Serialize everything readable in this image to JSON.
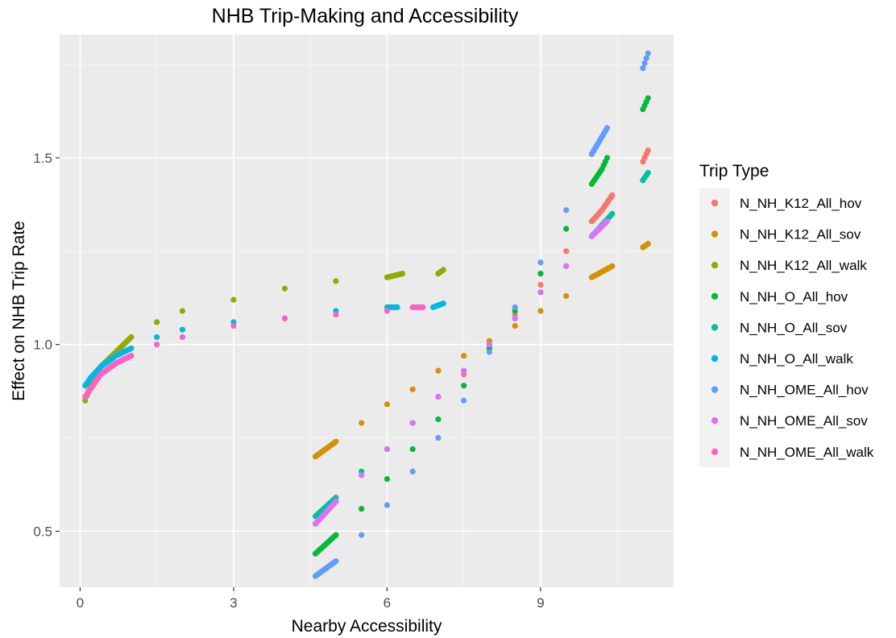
{
  "chart_data": {
    "type": "scatter",
    "title": "NHB Trip-Making and Accessibility",
    "xlabel": "Nearby Accessibility",
    "ylabel": "Effect on NHB Trip Rate",
    "xlim": [
      -0.4,
      11.6
    ],
    "ylim": [
      0.35,
      1.83
    ],
    "x_ticks": [
      0,
      3,
      6,
      9
    ],
    "x_tick_labels": [
      "0",
      "3",
      "6",
      "9"
    ],
    "y_ticks": [
      0.5,
      1.0,
      1.5
    ],
    "y_tick_labels": [
      "0.5",
      "1.0",
      "1.5"
    ],
    "grid": true,
    "legend": {
      "title": "Trip Type",
      "position": "right"
    },
    "series": [
      {
        "name": "N_NH_K12_All_hov",
        "color": "#F8766D",
        "points": [
          [
            4.6,
            0.52
          ],
          [
            5.0,
            0.58
          ],
          [
            5.5,
            0.65
          ],
          [
            6.0,
            0.72
          ],
          [
            6.5,
            0.79
          ],
          [
            7.0,
            0.86
          ],
          [
            7.5,
            0.92
          ],
          [
            8.0,
            1.0
          ],
          [
            8.5,
            1.08
          ],
          [
            9.0,
            1.16
          ],
          [
            9.5,
            1.25
          ],
          [
            10.0,
            1.33
          ],
          [
            10.2,
            1.36
          ],
          [
            10.4,
            1.4
          ],
          [
            11.0,
            1.49
          ],
          [
            11.1,
            1.52
          ]
        ]
      },
      {
        "name": "N_NH_K12_All_sov",
        "color": "#D39200",
        "points": [
          [
            4.6,
            0.7
          ],
          [
            5.0,
            0.74
          ],
          [
            5.5,
            0.79
          ],
          [
            6.0,
            0.84
          ],
          [
            6.5,
            0.88
          ],
          [
            7.0,
            0.93
          ],
          [
            7.5,
            0.97
          ],
          [
            8.0,
            1.01
          ],
          [
            8.5,
            1.05
          ],
          [
            9.0,
            1.09
          ],
          [
            9.5,
            1.13
          ],
          [
            10.0,
            1.18
          ],
          [
            10.4,
            1.21
          ],
          [
            11.0,
            1.26
          ],
          [
            11.1,
            1.27
          ]
        ]
      },
      {
        "name": "N_NH_K12_All_walk",
        "color": "#93AA00",
        "points": [
          [
            0.1,
            0.85
          ],
          [
            0.2,
            0.89
          ],
          [
            0.4,
            0.94
          ],
          [
            0.7,
            0.98
          ],
          [
            1.0,
            1.02
          ],
          [
            1.5,
            1.06
          ],
          [
            2.0,
            1.09
          ],
          [
            3.0,
            1.12
          ],
          [
            4.0,
            1.15
          ],
          [
            5.0,
            1.17
          ],
          [
            6.0,
            1.18
          ],
          [
            6.3,
            1.19
          ],
          [
            7.0,
            1.19
          ],
          [
            7.1,
            1.2
          ]
        ]
      },
      {
        "name": "N_NH_O_All_hov",
        "color": "#00BA38",
        "points": [
          [
            4.6,
            0.44
          ],
          [
            5.0,
            0.49
          ],
          [
            5.5,
            0.56
          ],
          [
            6.0,
            0.64
          ],
          [
            6.5,
            0.72
          ],
          [
            7.0,
            0.8
          ],
          [
            7.5,
            0.89
          ],
          [
            8.0,
            0.99
          ],
          [
            8.5,
            1.09
          ],
          [
            9.0,
            1.19
          ],
          [
            9.5,
            1.31
          ],
          [
            10.0,
            1.43
          ],
          [
            10.2,
            1.47
          ],
          [
            10.3,
            1.5
          ],
          [
            11.0,
            1.63
          ],
          [
            11.1,
            1.66
          ]
        ]
      },
      {
        "name": "N_NH_O_All_sov",
        "color": "#00C19F",
        "points": [
          [
            4.6,
            0.54
          ],
          [
            5.0,
            0.59
          ],
          [
            5.5,
            0.66
          ],
          [
            6.0,
            0.72
          ],
          [
            6.5,
            0.79
          ],
          [
            7.0,
            0.86
          ],
          [
            7.5,
            0.93
          ],
          [
            8.0,
            1.0
          ],
          [
            8.5,
            1.07
          ],
          [
            9.0,
            1.14
          ],
          [
            9.5,
            1.21
          ],
          [
            10.0,
            1.29
          ],
          [
            10.4,
            1.35
          ],
          [
            11.0,
            1.44
          ],
          [
            11.1,
            1.46
          ]
        ]
      },
      {
        "name": "N_NH_O_All_walk",
        "color": "#00B9E3",
        "points": [
          [
            0.1,
            0.89
          ],
          [
            0.2,
            0.91
          ],
          [
            0.4,
            0.94
          ],
          [
            0.7,
            0.97
          ],
          [
            1.0,
            0.99
          ],
          [
            1.5,
            1.02
          ],
          [
            2.0,
            1.04
          ],
          [
            3.0,
            1.06
          ],
          [
            4.0,
            1.07
          ],
          [
            5.0,
            1.09
          ],
          [
            6.0,
            1.1
          ],
          [
            6.2,
            1.1
          ],
          [
            6.9,
            1.1
          ],
          [
            7.1,
            1.11
          ]
        ]
      },
      {
        "name": "N_NH_OME_All_hov",
        "color": "#619CFF",
        "points": [
          [
            4.6,
            0.38
          ],
          [
            5.0,
            0.42
          ],
          [
            5.5,
            0.49
          ],
          [
            6.0,
            0.57
          ],
          [
            6.5,
            0.66
          ],
          [
            7.0,
            0.75
          ],
          [
            7.5,
            0.85
          ],
          [
            8.0,
            0.98
          ],
          [
            8.5,
            1.1
          ],
          [
            9.0,
            1.22
          ],
          [
            9.5,
            1.36
          ],
          [
            10.0,
            1.51
          ],
          [
            10.3,
            1.58
          ],
          [
            11.0,
            1.74
          ],
          [
            11.1,
            1.78
          ]
        ]
      },
      {
        "name": "N_NH_OME_All_sov",
        "color": "#DB72FB",
        "points": [
          [
            4.6,
            0.52
          ],
          [
            5.0,
            0.58
          ],
          [
            5.5,
            0.65
          ],
          [
            6.0,
            0.72
          ],
          [
            6.5,
            0.79
          ],
          [
            7.0,
            0.86
          ],
          [
            7.5,
            0.93
          ],
          [
            8.0,
            1.0
          ],
          [
            8.5,
            1.07
          ],
          [
            9.0,
            1.14
          ],
          [
            9.5,
            1.21
          ],
          [
            10.0,
            1.29
          ],
          [
            10.3,
            1.33
          ]
        ]
      },
      {
        "name": "N_NH_OME_All_walk",
        "color": "#FF61C3",
        "points": [
          [
            0.1,
            0.86
          ],
          [
            0.2,
            0.88
          ],
          [
            0.4,
            0.92
          ],
          [
            0.7,
            0.95
          ],
          [
            1.0,
            0.97
          ],
          [
            1.5,
            1.0
          ],
          [
            2.0,
            1.02
          ],
          [
            3.0,
            1.05
          ],
          [
            4.0,
            1.07
          ],
          [
            5.0,
            1.08
          ],
          [
            6.0,
            1.09
          ],
          [
            6.5,
            1.1
          ],
          [
            6.7,
            1.1
          ]
        ]
      }
    ]
  }
}
